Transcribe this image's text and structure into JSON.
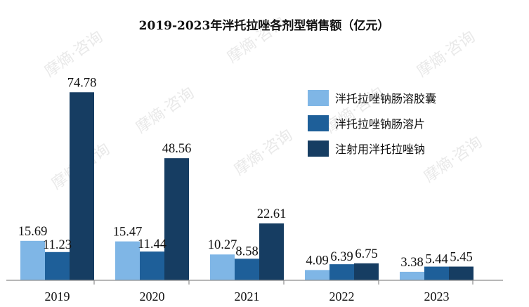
{
  "chart_data": {
    "type": "bar",
    "title": "2019-2023年泮托拉唑各剂型销售额（亿元）",
    "xlabel": "",
    "ylabel": "",
    "categories": [
      "2019",
      "2020",
      "2021",
      "2022",
      "2023"
    ],
    "series": [
      {
        "name": "泮托拉唑钠肠溶胶囊",
        "color": "#7fb6e6",
        "values": [
          15.69,
          15.47,
          10.27,
          4.09,
          3.38
        ]
      },
      {
        "name": "泮托拉唑钠肠溶片",
        "color": "#1e5f99",
        "values": [
          11.23,
          11.44,
          8.58,
          6.39,
          5.44
        ]
      },
      {
        "name": "注射用泮托拉唑钠",
        "color": "#163d62",
        "values": [
          74.78,
          48.56,
          22.61,
          6.75,
          5.45
        ]
      }
    ],
    "ylim": [
      0,
      80
    ],
    "grid": false,
    "legend_position": "top-right"
  },
  "watermark": "摩熵·咨询"
}
